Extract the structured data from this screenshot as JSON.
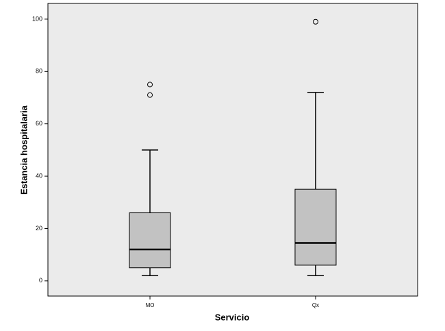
{
  "chart_data": {
    "type": "boxplot",
    "x_label": "Servicio",
    "y_label": "Estancia hospitalaria",
    "categories": [
      "MO",
      "Qx"
    ],
    "boxes": [
      {
        "whislo": 2,
        "q1": 5,
        "med": 12,
        "q3": 26,
        "whishi": 50,
        "fliers": [
          71,
          75
        ]
      },
      {
        "whislo": 2,
        "q1": 6,
        "med": 14.5,
        "q3": 35,
        "whishi": 72,
        "fliers": [
          99
        ]
      }
    ],
    "color": "#c2c2c2",
    "background": "#ebebeb",
    "ylim": [
      -5.8,
      106
    ],
    "yticks": [
      0,
      20,
      40,
      60,
      80,
      100
    ]
  }
}
